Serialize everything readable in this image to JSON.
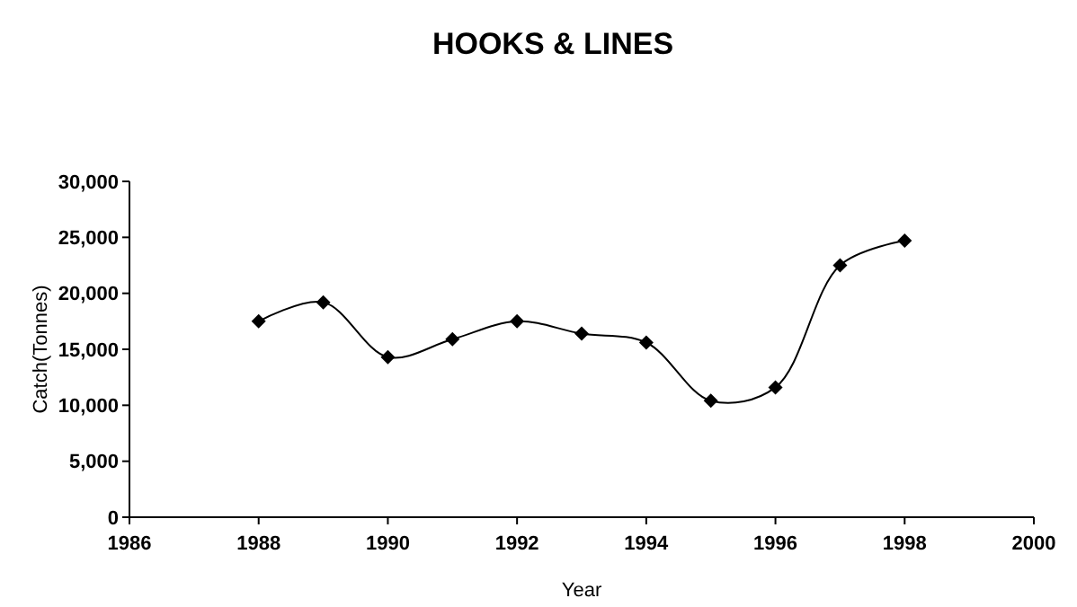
{
  "chart_data": {
    "type": "line",
    "title": "HOOKS & LINES",
    "xlabel": "Year",
    "ylabel": "Catch(Tonnes)",
    "x": [
      1988,
      1989,
      1990,
      1991,
      1992,
      1993,
      1994,
      1995,
      1996,
      1997,
      1998
    ],
    "series": [
      {
        "color": "#000000",
        "values": [
          17500,
          19200,
          14300,
          15900,
          17500,
          16400,
          15600,
          10400,
          11600,
          22500,
          24700
        ]
      }
    ],
    "xlim": [
      1986,
      2000
    ],
    "xticks": [
      1986,
      1988,
      1990,
      1992,
      1994,
      1996,
      1998,
      2000
    ],
    "ylim": [
      0,
      30000
    ],
    "yticks": [
      {
        "value": 0,
        "label": "0"
      },
      {
        "value": 5000,
        "label": "5,000"
      },
      {
        "value": 10000,
        "label": "10,000"
      },
      {
        "value": 15000,
        "label": "15,000"
      },
      {
        "value": 20000,
        "label": "20,000"
      },
      {
        "value": 25000,
        "label": "25,000"
      },
      {
        "value": 30000,
        "label": "30,000"
      }
    ],
    "grid": false,
    "marker": "diamond",
    "line_style": "solid"
  }
}
